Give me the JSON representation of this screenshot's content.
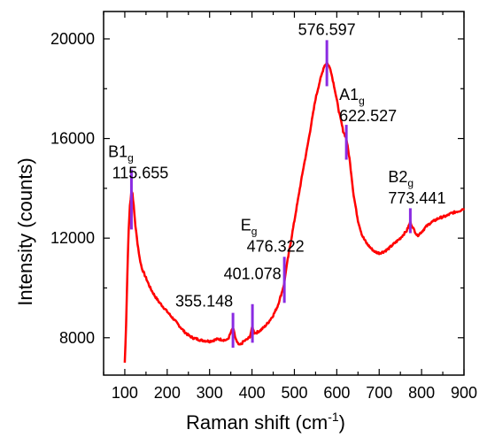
{
  "chart_data": {
    "type": "line",
    "xlabel": "Raman shift (cm",
    "xlabel_sup": "-1",
    "xlabel_end": ")",
    "ylabel": "Intensity (counts)",
    "xlim": [
      50,
      900
    ],
    "ylim": [
      6500,
      21100
    ],
    "xticks": [
      100,
      200,
      300,
      400,
      500,
      600,
      700,
      800,
      900
    ],
    "yticks": [
      8000,
      12000,
      16000,
      20000
    ],
    "x_minor_step": 50,
    "y_minor_step": 2000,
    "line_color": "#ff0000",
    "marker_color": "#8a2be2",
    "series": [
      {
        "values": [
          [
            100,
            7000
          ],
          [
            103,
            8500
          ],
          [
            106,
            10500
          ],
          [
            109,
            12300
          ],
          [
            112,
            13300
          ],
          [
            115.655,
            13900
          ],
          [
            118,
            13800
          ],
          [
            121,
            13300
          ],
          [
            125,
            12500
          ],
          [
            130,
            11800
          ],
          [
            135,
            11200
          ],
          [
            140,
            10800
          ],
          [
            150,
            10400
          ],
          [
            160,
            10000
          ],
          [
            170,
            9700
          ],
          [
            180,
            9450
          ],
          [
            190,
            9250
          ],
          [
            200,
            9050
          ],
          [
            210,
            8850
          ],
          [
            220,
            8650
          ],
          [
            230,
            8450
          ],
          [
            240,
            8250
          ],
          [
            250,
            8100
          ],
          [
            260,
            8000
          ],
          [
            270,
            7950
          ],
          [
            280,
            7900
          ],
          [
            290,
            7880
          ],
          [
            300,
            7860
          ],
          [
            310,
            7900
          ],
          [
            320,
            7950
          ],
          [
            330,
            7920
          ],
          [
            340,
            7900
          ],
          [
            345,
            8000
          ],
          [
            350,
            8200
          ],
          [
            355.148,
            8400
          ],
          [
            360,
            8050
          ],
          [
            365,
            7800
          ],
          [
            370,
            7700
          ],
          [
            375,
            7750
          ],
          [
            380,
            7850
          ],
          [
            385,
            7900
          ],
          [
            390,
            7950
          ],
          [
            395,
            8050
          ],
          [
            401.078,
            8450
          ],
          [
            405,
            8200
          ],
          [
            410,
            8200
          ],
          [
            420,
            8300
          ],
          [
            430,
            8450
          ],
          [
            440,
            8650
          ],
          [
            450,
            8900
          ],
          [
            460,
            9250
          ],
          [
            470,
            9800
          ],
          [
            476.322,
            10200
          ],
          [
            480,
            10700
          ],
          [
            490,
            11700
          ],
          [
            500,
            12700
          ],
          [
            510,
            13700
          ],
          [
            520,
            14700
          ],
          [
            530,
            15600
          ],
          [
            540,
            16600
          ],
          [
            550,
            17600
          ],
          [
            560,
            18300
          ],
          [
            570,
            18900
          ],
          [
            576.597,
            19050
          ],
          [
            585,
            18800
          ],
          [
            595,
            18000
          ],
          [
            605,
            17100
          ],
          [
            615,
            16300
          ],
          [
            622.527,
            16000
          ],
          [
            630,
            15200
          ],
          [
            640,
            13700
          ],
          [
            650,
            12700
          ],
          [
            660,
            12100
          ],
          [
            670,
            11800
          ],
          [
            680,
            11600
          ],
          [
            690,
            11450
          ],
          [
            700,
            11400
          ],
          [
            710,
            11450
          ],
          [
            720,
            11550
          ],
          [
            730,
            11700
          ],
          [
            740,
            11850
          ],
          [
            750,
            12000
          ],
          [
            760,
            12200
          ],
          [
            765,
            12300
          ],
          [
            773.441,
            12650
          ],
          [
            780,
            12400
          ],
          [
            790,
            12100
          ],
          [
            800,
            12250
          ],
          [
            810,
            12450
          ],
          [
            820,
            12600
          ],
          [
            830,
            12700
          ],
          [
            840,
            12800
          ],
          [
            850,
            12850
          ],
          [
            860,
            12900
          ],
          [
            870,
            13000
          ],
          [
            880,
            13050
          ],
          [
            890,
            13100
          ],
          [
            900,
            13200
          ]
        ]
      }
    ],
    "peaks": [
      {
        "x": 115.655,
        "y0": 12350,
        "y1": 14750
      },
      {
        "x": 355.148,
        "y0": 7600,
        "y1": 9000
      },
      {
        "x": 401.078,
        "y0": 7800,
        "y1": 9350
      },
      {
        "x": 476.322,
        "y0": 9400,
        "y1": 11250
      },
      {
        "x": 576.597,
        "y0": 18100,
        "y1": 19950
      },
      {
        "x": 622.527,
        "y0": 15150,
        "y1": 16550
      },
      {
        "x": 773.441,
        "y0": 12200,
        "y1": 13200
      }
    ],
    "annotations": [
      {
        "x": 115.655,
        "y": 15250,
        "text": "B1",
        "sub": "g",
        "anchor": "middle",
        "dx": -12
      },
      {
        "x": 115.655,
        "y": 14400,
        "text": "115.655",
        "sub": "",
        "anchor": "middle",
        "dx": 10
      },
      {
        "x": 355.148,
        "y": 9250,
        "text": "355.148",
        "sub": "",
        "anchor": "end",
        "dx": 0
      },
      {
        "x": 401.078,
        "y": 10350,
        "text": "401.078",
        "sub": "",
        "anchor": "middle",
        "dx": 0
      },
      {
        "x": 476.322,
        "y": 12300,
        "text": "E",
        "sub": "g",
        "anchor": "middle",
        "dx": -40
      },
      {
        "x": 476.322,
        "y": 11450,
        "text": "476.322",
        "sub": "",
        "anchor": "middle",
        "dx": -10
      },
      {
        "x": 576.597,
        "y": 20150,
        "text": "576.597",
        "sub": "",
        "anchor": "middle",
        "dx": 0
      },
      {
        "x": 622.527,
        "y": 17550,
        "text": "A1",
        "sub": "g",
        "anchor": "start",
        "dx": -8
      },
      {
        "x": 622.527,
        "y": 16700,
        "text": "622.527",
        "sub": "",
        "anchor": "start",
        "dx": -8
      },
      {
        "x": 773.441,
        "y": 14250,
        "text": "B2",
        "sub": "g",
        "anchor": "start",
        "dx": -25
      },
      {
        "x": 773.441,
        "y": 13400,
        "text": "773.441",
        "sub": "",
        "anchor": "start",
        "dx": -25
      }
    ]
  }
}
